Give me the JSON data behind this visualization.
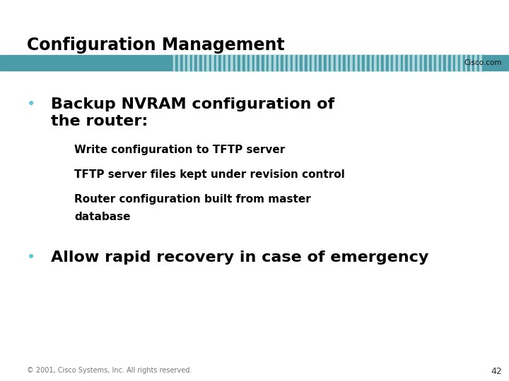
{
  "title": "Configuration Management",
  "cisco_text": "Cisco.com",
  "background_color": "#ffffff",
  "title_color": "#000000",
  "title_fontsize": 17,
  "header_bar_color": "#4a9da8",
  "header_stripe_light": "#b0d8dd",
  "header_stripe_dark": "#4a9da8",
  "bullet_color": "#5bc8d5",
  "bullet1_text_line1": "Backup NVRAM configuration of",
  "bullet1_text_line2": "the router:",
  "sub_items": [
    "Write configuration to TFTP server",
    "TFTP server files kept under revision control",
    "Router configuration built from master",
    "database"
  ],
  "bullet2_text": "Allow rapid recovery in case of emergency",
  "footer_text": "© 2001, Cisco Systems, Inc. All rights reserved.",
  "page_number": "42",
  "main_bullet_fontsize": 16,
  "sub_bullet_fontsize": 11,
  "footer_fontsize": 7
}
